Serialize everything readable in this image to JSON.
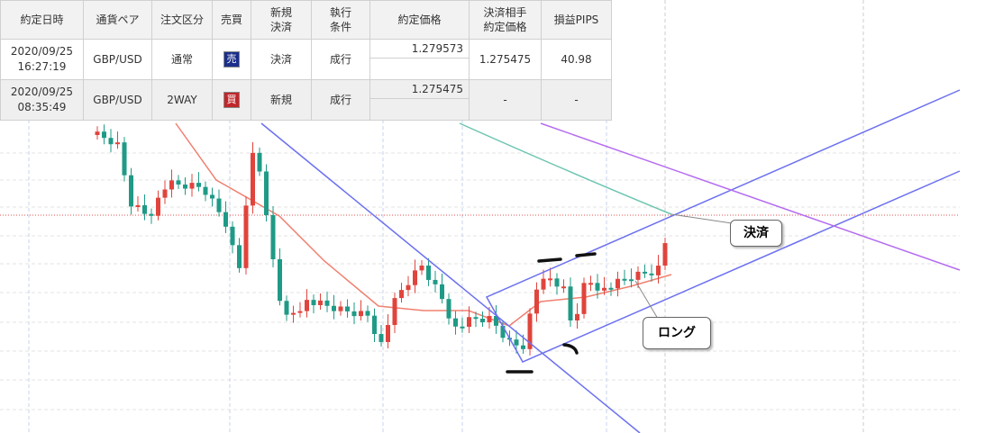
{
  "table": {
    "headers": [
      [
        "約定日時"
      ],
      [
        "通貨ペア"
      ],
      [
        "注文区分"
      ],
      [
        "売買"
      ],
      [
        "新規",
        "決済"
      ],
      [
        "執行",
        "条件"
      ],
      [
        "約定価格"
      ],
      [
        "決済相手",
        "約定価格"
      ],
      [
        "損益PIPS"
      ]
    ],
    "rows": [
      [
        [
          "2020/09/25",
          "16:27:19"
        ],
        "GBP/USD",
        "通常",
        "売",
        "決済",
        "成行",
        "1.279573",
        "1.275475",
        "40.98"
      ],
      [
        [
          "2020/09/25",
          "08:35:49"
        ],
        "GBP/USD",
        "2WAY",
        "買",
        "新規",
        "成行",
        "1.275475",
        "-",
        "-"
      ]
    ]
  },
  "annotations": {
    "exit": "決済",
    "long": "ロング"
  }
}
